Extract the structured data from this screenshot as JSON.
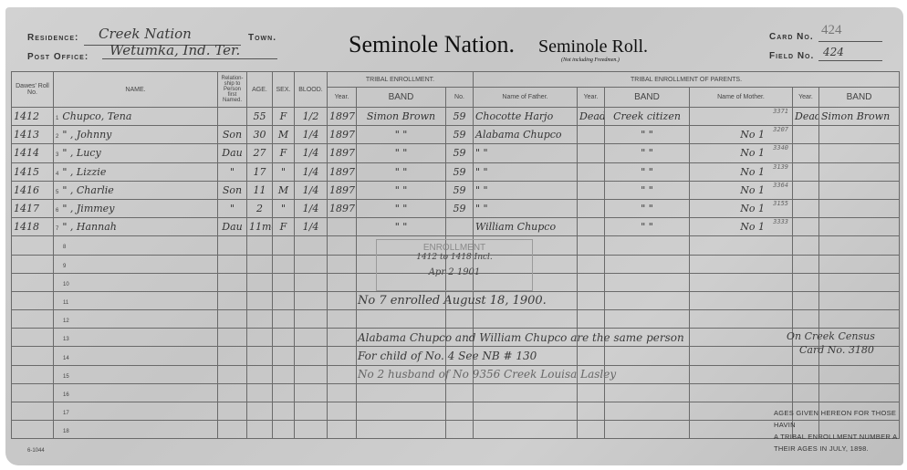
{
  "header": {
    "residence_label": "Residence:",
    "residence": "Creek Nation",
    "town_label": "Town.",
    "post_office_label": "Post Office:",
    "post_office": "Wetumka, Ind. Ter.",
    "title1": "Seminole Nation.",
    "title2": "Seminole Roll.",
    "subtitle": "(Not including Freedmen.)",
    "card_label": "Card No.",
    "card_no": "424",
    "field_label": "Field No.",
    "field_no": "424"
  },
  "columns": {
    "dawes": "Dawes' Roll No.",
    "name": "NAME.",
    "relationship": "Relation-ship to Person first Named.",
    "age": "AGE.",
    "sex": "SEX.",
    "blood": "BLOOD.",
    "tribal": "TRIBAL ENROLLMENT.",
    "year": "Year.",
    "band": "BAND",
    "no": "No.",
    "parents": "TRIBAL ENROLLMENT OF PARENTS.",
    "father": "Name of Father.",
    "mother": "Name of Mother."
  },
  "rows": [
    {
      "dawes": "1412",
      "line": "1",
      "name": "Chupco, Tena",
      "rel": "",
      "age": "55",
      "sex": "F",
      "blood": "1/2",
      "year": "1897",
      "band": "Simon Brown",
      "no": "59",
      "father": "Chocotte Harjo",
      "fyear": "Dead",
      "fband": "Creek citizen",
      "mother": "",
      "mnum": "3371",
      "myear": "Dead",
      "mband": "Simon Brown"
    },
    {
      "dawes": "1413",
      "line": "2",
      "name": "\"  , Johnny",
      "rel": "Son",
      "age": "30",
      "sex": "M",
      "blood": "1/4",
      "year": "1897",
      "band": "\"   \"",
      "no": "59",
      "father": "Alabama Chupco",
      "fyear": "",
      "fband": "\"   \"",
      "mother": "No 1",
      "mnum": "3207",
      "myear": "",
      "mband": ""
    },
    {
      "dawes": "1414",
      "line": "3",
      "name": "\"  , Lucy",
      "rel": "Dau",
      "age": "27",
      "sex": "F",
      "blood": "1/4",
      "year": "1897",
      "band": "\"   \"",
      "no": "59",
      "father": "\"   \"",
      "fyear": "",
      "fband": "\"   \"",
      "mother": "No 1",
      "mnum": "3340",
      "myear": "",
      "mband": ""
    },
    {
      "dawes": "1415",
      "line": "4",
      "name": "\"  , Lizzie",
      "rel": "\"",
      "age": "17",
      "sex": "\"",
      "blood": "1/4",
      "year": "1897",
      "band": "\"   \"",
      "no": "59",
      "father": "\"   \"",
      "fyear": "",
      "fband": "\"   \"",
      "mother": "No 1",
      "mnum": "3139",
      "myear": "",
      "mband": ""
    },
    {
      "dawes": "1416",
      "line": "5",
      "name": "\"  , Charlie",
      "rel": "Son",
      "age": "11",
      "sex": "M",
      "blood": "1/4",
      "year": "1897",
      "band": "\"   \"",
      "no": "59",
      "father": "\"   \"",
      "fyear": "",
      "fband": "\"   \"",
      "mother": "No 1",
      "mnum": "3364",
      "myear": "",
      "mband": ""
    },
    {
      "dawes": "1417",
      "line": "6",
      "name": "\"  , Jimmey",
      "rel": "\"",
      "age": "2",
      "sex": "\"",
      "blood": "1/4",
      "year": "1897",
      "band": "\"   \"",
      "no": "59",
      "father": "\"   \"",
      "fyear": "",
      "fband": "\"   \"",
      "mother": "No 1",
      "mnum": "3155",
      "myear": "",
      "mband": ""
    },
    {
      "dawes": "1418",
      "line": "7",
      "name": "\"  , Hannah",
      "rel": "Dau",
      "age": "11mo",
      "sex": "F",
      "blood": "1/4",
      "year": "",
      "band": "\"   \"",
      "no": "",
      "father": "William Chupco",
      "fyear": "",
      "fband": "\"   \"",
      "mother": "No 1",
      "mnum": "3333",
      "myear": "",
      "mband": ""
    }
  ],
  "blank_lines": [
    "8",
    "9",
    "10",
    "11",
    "12",
    "13",
    "14",
    "15",
    "16",
    "17",
    "18"
  ],
  "stamp": {
    "title": "ENROLLMENT",
    "range": "1412 to 1418 Incl.",
    "date": "Apr 2 1901"
  },
  "notes": [
    "No 7 enrolled August 18, 1900.",
    "Alabama Chupco and William Chupco are the same person",
    "For child of No. 4 See NB # 130",
    "No 2 husband of No 9356 Creek Louisa Lasley",
    "On Creek Census",
    "Card No. 3180"
  ],
  "footer": {
    "line1": "AGES GIVEN HEREON FOR THOSE HAVIN",
    "line2": "A TRIBAL ENROLLMENT NUMBER A",
    "line3": "THEIR AGES IN JULY, 1898.",
    "form_no": "6-1044"
  }
}
